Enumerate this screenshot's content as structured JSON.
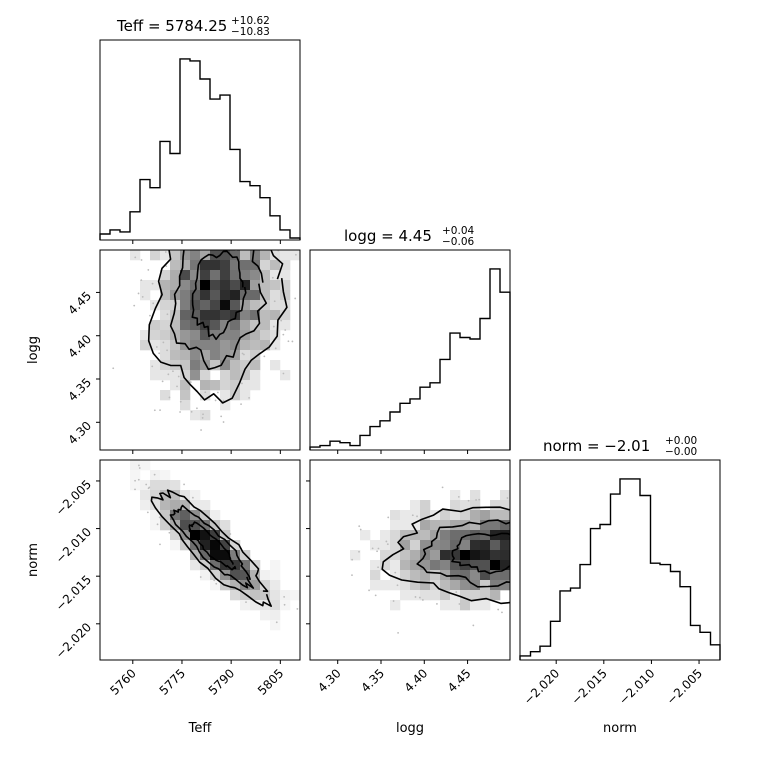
{
  "chart_data": {
    "type": "corner",
    "parameters": [
      {
        "name": "Teff",
        "range": [
          5750,
          5811
        ],
        "ticks": [
          5760,
          5775,
          5790,
          5805
        ],
        "tick_labels": [
          "5760",
          "5775",
          "5790",
          "5805"
        ]
      },
      {
        "name": "logg",
        "range": [
          4.268,
          4.499
        ],
        "ticks": [
          4.3,
          4.35,
          4.4,
          4.45
        ],
        "tick_labels": [
          "4.30",
          "4.35",
          "4.40",
          "4.45"
        ]
      },
      {
        "name": "norm",
        "range": [
          -2.0238,
          -2.0028
        ],
        "ticks": [
          -2.02,
          -2.015,
          -2.01,
          -2.005
        ],
        "tick_labels": [
          "−2.020",
          "−2.015",
          "−2.010",
          "−2.005"
        ]
      }
    ],
    "titles": [
      {
        "main": "Teff = 5784.25",
        "plus": "+10.62",
        "minus": "−10.83"
      },
      {
        "main": "logg = 4.45",
        "plus": "+0.04",
        "minus": "−0.06"
      },
      {
        "main": "norm = −2.01",
        "plus": "+0.00",
        "minus": "−0.00"
      }
    ],
    "histograms": [
      {
        "param": "Teff",
        "bin_edges": [
          5750,
          5753.05,
          5756.1,
          5759.15,
          5762.2,
          5765.25,
          5768.3,
          5771.35,
          5774.4,
          5777.45,
          5780.5,
          5783.55,
          5786.6,
          5789.65,
          5792.7,
          5795.75,
          5798.8,
          5801.85,
          5804.9,
          5807.95,
          5811
        ],
        "counts": [
          3,
          5,
          4,
          14,
          30,
          26,
          49,
          43,
          90,
          89,
          80,
          70,
          72,
          45,
          29,
          27,
          21,
          12,
          5,
          1
        ]
      },
      {
        "param": "logg",
        "bin_edges": [
          4.268,
          4.2796,
          4.2911,
          4.3027,
          4.3142,
          4.3258,
          4.3373,
          4.3489,
          4.3604,
          4.372,
          4.3835,
          4.3951,
          4.4066,
          4.4182,
          4.4297,
          4.4413,
          4.4528,
          4.4644,
          4.4759,
          4.4875,
          4.499
        ],
        "counts": [
          2,
          3,
          6,
          5,
          3,
          10,
          16,
          20,
          26,
          32,
          35,
          43,
          46,
          62,
          80,
          77,
          76,
          90,
          124,
          108
        ]
      },
      {
        "param": "norm",
        "bin_edges": [
          -2.0238,
          -2.0227,
          -2.0217,
          -2.0206,
          -2.0196,
          -2.0185,
          -2.0175,
          -2.0164,
          -2.0154,
          -2.0143,
          -2.0133,
          -2.0122,
          -2.0112,
          -2.0101,
          -2.0091,
          -2.008,
          -2.007,
          -2.0059,
          -2.0049,
          -2.0038,
          -2.0028
        ],
        "counts": [
          3,
          6,
          10,
          28,
          50,
          52,
          69,
          95,
          98,
          120,
          131,
          131,
          119,
          70,
          69,
          64,
          53,
          25,
          20,
          11
        ]
      }
    ],
    "pair_panels": [
      {
        "x": "Teff",
        "y": "logg",
        "peak": [
          5786,
          4.472
        ]
      },
      {
        "x": "Teff",
        "y": "norm",
        "peak": [
          5784,
          -2.0118
        ]
      },
      {
        "x": "logg",
        "y": "norm",
        "peak": [
          4.468,
          -2.0125
        ]
      }
    ],
    "axis_labels": [
      "Teff",
      "logg",
      "norm"
    ],
    "legend": "none",
    "grid": false
  }
}
